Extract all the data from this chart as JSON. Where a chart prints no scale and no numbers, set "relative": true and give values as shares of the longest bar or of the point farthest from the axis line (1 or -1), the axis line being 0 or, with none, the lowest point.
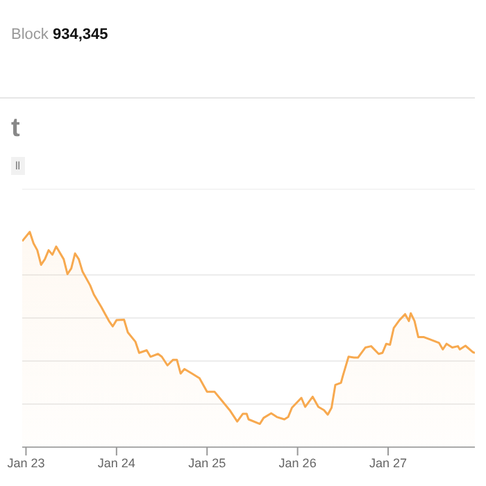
{
  "chart_data": {
    "type": "area",
    "title": "t",
    "annotations": [
      "Block 934,345",
      "ll"
    ],
    "relative": true,
    "grid": "y",
    "legend": false,
    "marker": "none",
    "line_style": "solid",
    "xlim": [
      "--01-22T23:00",
      "--01-27T23:00"
    ],
    "xticks": [
      {
        "value": "--01-23",
        "label": "Jan 23"
      },
      {
        "value": "--01-24",
        "label": "Jan 24"
      },
      {
        "value": "--01-25",
        "label": "Jan 25"
      },
      {
        "value": "--01-26",
        "label": "Jan 26"
      },
      {
        "value": "--01-27",
        "label": "Jan 27"
      }
    ],
    "x": [
      "--01-22T23:00",
      "--01-23T01:00",
      "--01-23T02:00",
      "--01-23T03:00",
      "--01-23T04:00",
      "--01-23T05:00",
      "--01-23T06:00",
      "--01-23T07:00",
      "--01-23T08:00",
      "--01-23T10:00",
      "--01-23T11:00",
      "--01-23T12:00",
      "--01-23T13:00",
      "--01-23T14:00",
      "--01-23T15:00",
      "--01-23T17:00",
      "--01-23T18:00",
      "--01-23T20:00",
      "--01-23T21:00",
      "--01-23T22:00",
      "--01-23T23:00",
      "--01-24T00:00",
      "--01-24T02:00",
      "--01-24T03:00",
      "--01-24T05:00",
      "--01-24T06:00",
      "--01-24T08:00",
      "--01-24T09:00",
      "--01-24T11:00",
      "--01-24T12:00",
      "--01-24T13:30",
      "--01-24T15:00",
      "--01-24T16:00",
      "--01-24T17:00",
      "--01-24T18:00",
      "--01-24T20:00",
      "--01-24T22:00",
      "--01-25T00:00",
      "--01-25T02:00",
      "--01-25T03:30",
      "--01-25T06:00",
      "--01-25T08:00",
      "--01-25T09:30",
      "--01-25T10:30",
      "--01-25T11:00",
      "--01-25T14:00",
      "--01-25T15:00",
      "--01-25T17:00",
      "--01-25T18:30",
      "--01-25T20:30",
      "--01-25T21:30",
      "--01-25T22:30",
      "--01-26T01:00",
      "--01-26T02:00",
      "--01-26T04:00",
      "--01-26T05:30",
      "--01-26T07:00",
      "--01-26T08:00",
      "--01-26T09:00",
      "--01-26T10:00",
      "--01-26T11:30",
      "--01-26T12:00",
      "--01-26T13:30",
      "--01-26T15:00",
      "--01-26T16:00",
      "--01-26T18:00",
      "--01-26T19:30",
      "--01-26T21:30",
      "--01-26T22:30",
      "--01-26T23:30",
      "--01-27T00:30",
      "--01-27T01:30",
      "--01-27T03:00",
      "--01-27T04:30",
      "--01-27T05:30",
      "--01-27T06:00",
      "--01-27T07:00",
      "--01-27T08:00",
      "--01-27T09:30",
      "--01-27T11:00",
      "--01-27T13:30",
      "--01-27T14:30",
      "--01-27T15:30",
      "--01-27T17:00",
      "--01-27T18:30",
      "--01-27T19:00",
      "--01-27T20:30",
      "--01-27T22:30",
      "--01-27T23:00"
    ],
    "series": [
      {
        "color": "#f7a94f",
        "values": [
          0.957,
          1.0,
          0.947,
          0.915,
          0.847,
          0.873,
          0.915,
          0.894,
          0.932,
          0.873,
          0.804,
          0.83,
          0.9,
          0.873,
          0.815,
          0.752,
          0.709,
          0.65,
          0.618,
          0.586,
          0.561,
          0.59,
          0.592,
          0.533,
          0.49,
          0.438,
          0.45,
          0.42,
          0.433,
          0.42,
          0.38,
          0.406,
          0.406,
          0.342,
          0.363,
          0.342,
          0.32,
          0.257,
          0.257,
          0.225,
          0.172,
          0.119,
          0.155,
          0.155,
          0.129,
          0.108,
          0.136,
          0.157,
          0.14,
          0.129,
          0.14,
          0.183,
          0.229,
          0.187,
          0.234,
          0.187,
          0.172,
          0.151,
          0.183,
          0.289,
          0.299,
          0.331,
          0.42,
          0.416,
          0.416,
          0.463,
          0.469,
          0.433,
          0.438,
          0.48,
          0.476,
          0.554,
          0.59,
          0.618,
          0.586,
          0.622,
          0.586,
          0.511,
          0.511,
          0.501,
          0.484,
          0.454,
          0.48,
          0.463,
          0.469,
          0.454,
          0.471,
          0.441,
          0.438
        ]
      }
    ]
  }
}
